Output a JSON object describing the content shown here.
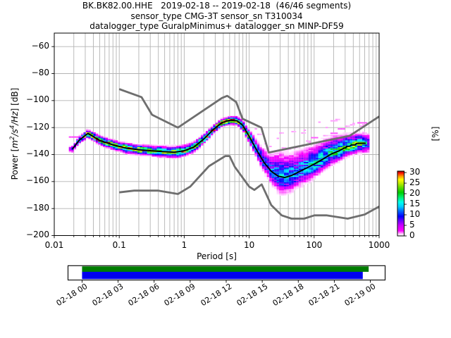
{
  "title": {
    "line1": "BK.BK82.00.HHE   2019-02-18 -- 2019-02-18  (46/46 segments)",
    "line2": "sensor_type CMG-3T sensor_sn T310034",
    "line3": "datalogger_type GuralpMinimus+ datalogger_sn MINP-DF59"
  },
  "chart_data": {
    "type": "heatmap",
    "xlabel": "Period [s]",
    "ylabel_parts": [
      {
        "t": "Power [",
        "i": false
      },
      {
        "t": "m",
        "i": true
      },
      {
        "t": "2",
        "i": true,
        "sup": true
      },
      {
        "t": "/s",
        "i": true
      },
      {
        "t": "4",
        "i": true,
        "sup": true
      },
      {
        "t": "/Hz",
        "i": true
      },
      {
        "t": "] [dB]",
        "i": false
      }
    ],
    "x_axis": {
      "scale": "log",
      "lim": [
        0.01,
        1000
      ],
      "ticks": [
        0.01,
        0.1,
        1,
        10,
        100,
        1000
      ],
      "tick_labels": [
        "0.01",
        "0.1",
        "1",
        "10",
        "100",
        "1000"
      ],
      "grid": true
    },
    "y_axis": {
      "lim": [
        -200,
        -50
      ],
      "ticks": [
        -60,
        -80,
        -100,
        -120,
        -140,
        -160,
        -180,
        -200
      ],
      "tick_labels": [
        "−60",
        "−80",
        "−100",
        "−120",
        "−140",
        "−160",
        "−180",
        "−200"
      ],
      "grid": true
    },
    "grid_color": "#b4b4b4",
    "colorbar": {
      "label": "[%]",
      "ticks": [
        0,
        5,
        10,
        15,
        20,
        25,
        30
      ],
      "vmax": 30.7,
      "stops": [
        [
          0.0,
          "#ffffff"
        ],
        [
          0.03,
          "#ffccff"
        ],
        [
          0.08,
          "#ff00ff"
        ],
        [
          0.16,
          "#cc00ff"
        ],
        [
          0.24,
          "#6600ff"
        ],
        [
          0.3,
          "#0000ff"
        ],
        [
          0.38,
          "#0066ff"
        ],
        [
          0.45,
          "#00ccff"
        ],
        [
          0.52,
          "#00ffee"
        ],
        [
          0.6,
          "#00ee66"
        ],
        [
          0.67,
          "#00cc00"
        ],
        [
          0.75,
          "#66dd00"
        ],
        [
          0.82,
          "#ccee00"
        ],
        [
          0.87,
          "#ffff00"
        ],
        [
          0.92,
          "#ff9900"
        ],
        [
          0.97,
          "#ff1100"
        ],
        [
          1.0,
          "#8b0000"
        ]
      ]
    },
    "noise_models": {
      "color": "#6e6e6e",
      "nhnm": [
        [
          0.1,
          -91.5
        ],
        [
          0.22,
          -97.4
        ],
        [
          0.32,
          -110.5
        ],
        [
          0.8,
          -120
        ],
        [
          3.8,
          -98.1
        ],
        [
          4.6,
          -96.5
        ],
        [
          6.3,
          -101
        ],
        [
          7.9,
          -113.5
        ],
        [
          15.4,
          -120
        ],
        [
          20,
          -138.5
        ],
        [
          354.8,
          -126
        ],
        [
          1000,
          -111.8
        ]
      ],
      "nlnm": [
        [
          0.1,
          -168
        ],
        [
          0.17,
          -166.7
        ],
        [
          0.4,
          -166.7
        ],
        [
          0.8,
          -169.2
        ],
        [
          1.24,
          -163.7
        ],
        [
          2.4,
          -148.6
        ],
        [
          4.3,
          -141.1
        ],
        [
          5,
          -141.1
        ],
        [
          6,
          -149
        ],
        [
          10,
          -163.8
        ],
        [
          12,
          -166.2
        ],
        [
          15.6,
          -162.1
        ],
        [
          21.9,
          -177.5
        ],
        [
          31.6,
          -185
        ],
        [
          45,
          -187.5
        ],
        [
          70,
          -187.5
        ],
        [
          101,
          -185
        ],
        [
          154,
          -185
        ],
        [
          328,
          -187.5
        ],
        [
          600,
          -184.4
        ],
        [
          1000,
          -178.5
        ]
      ]
    },
    "mode_line": {
      "color": "#000000",
      "points": [
        [
          0.019,
          -136
        ],
        [
          0.024,
          -129.5
        ],
        [
          0.033,
          -124.3
        ],
        [
          0.05,
          -129.5
        ],
        [
          0.08,
          -132.8
        ],
        [
          0.13,
          -135.3
        ],
        [
          0.22,
          -136.6
        ],
        [
          0.4,
          -137.6
        ],
        [
          0.7,
          -138.3
        ],
        [
          1.0,
          -137.2
        ],
        [
          1.4,
          -134.5
        ],
        [
          2.0,
          -128.5
        ],
        [
          2.8,
          -121.5
        ],
        [
          3.8,
          -116.3
        ],
        [
          5.0,
          -114.6
        ],
        [
          6.5,
          -115.0
        ],
        [
          8.0,
          -118.5
        ],
        [
          10,
          -126.5
        ],
        [
          13,
          -136.5
        ],
        [
          17,
          -146
        ],
        [
          22,
          -152.5
        ],
        [
          28,
          -156
        ],
        [
          35,
          -157
        ],
        [
          45,
          -155.5
        ],
        [
          60,
          -152.5
        ],
        [
          80,
          -149.5
        ],
        [
          105,
          -146.5
        ],
        [
          140,
          -143
        ],
        [
          185,
          -139.5
        ],
        [
          240,
          -137.3
        ],
        [
          290,
          -135.2
        ],
        [
          305,
          -135.0
        ],
        [
          315,
          -134.0
        ],
        [
          355,
          -133.8
        ],
        [
          370,
          -133.0
        ],
        [
          430,
          -132.8
        ],
        [
          445,
          -131.8
        ],
        [
          620,
          -131.6
        ]
      ]
    },
    "histogram": {
      "period_step_octaves": 0.125,
      "period_range": [
        0.0175,
        700
      ],
      "db_bin_width": 1,
      "profile": [
        [
          0.0175,
          1.0,
          1.0,
          6
        ],
        [
          0.023,
          1.2,
          1.2,
          18
        ],
        [
          0.033,
          1.3,
          1.3,
          26
        ],
        [
          0.06,
          1.5,
          1.5,
          28
        ],
        [
          0.12,
          1.6,
          1.6,
          26
        ],
        [
          0.3,
          1.7,
          1.7,
          24
        ],
        [
          0.7,
          1.9,
          1.9,
          22
        ],
        [
          1.5,
          1.7,
          1.7,
          24
        ],
        [
          3.0,
          1.3,
          1.3,
          30
        ],
        [
          6.0,
          1.3,
          1.3,
          30
        ],
        [
          9.0,
          1.9,
          1.9,
          22
        ],
        [
          13,
          3.2,
          2.6,
          13
        ],
        [
          20,
          5.2,
          3.6,
          11
        ],
        [
          30,
          8.0,
          5.5,
          13
        ],
        [
          50,
          7.0,
          5.0,
          13
        ],
        [
          100,
          6.0,
          4.5,
          15
        ],
        [
          200,
          5.5,
          3.5,
          17
        ],
        [
          350,
          3.5,
          3.2,
          20
        ],
        [
          550,
          3.2,
          3.0,
          20
        ],
        [
          700,
          3.0,
          3.0,
          10
        ]
      ],
      "streaks": [
        [
          0.0175,
          0.028,
          -127,
          2
        ],
        [
          90,
          120,
          -127.5,
          1.8
        ],
        [
          180,
          240,
          -124.2,
          1.8
        ],
        [
          230,
          310,
          -121,
          1.8
        ],
        [
          430,
          640,
          -116.5,
          1.8
        ]
      ]
    },
    "timeline": {
      "xlim_hours": [
        -1.17,
        25.23
      ],
      "ticks": [
        {
          "label": "02-18 00",
          "hour": 0
        },
        {
          "label": "02-18 03",
          "hour": 3
        },
        {
          "label": "02-18 06",
          "hour": 6
        },
        {
          "label": "02-18 09",
          "hour": 9
        },
        {
          "label": "02-18 12",
          "hour": 12
        },
        {
          "label": "02-18 15",
          "hour": 15
        },
        {
          "label": "02-18 18",
          "hour": 18
        },
        {
          "label": "02-18 21",
          "hour": 21
        },
        {
          "label": "02-19 00",
          "hour": 24
        }
      ],
      "green_span_hours": [
        0,
        23.86
      ],
      "blue_span_hours": [
        0,
        23.37
      ],
      "green_color": "#007c00",
      "blue_color": "#0000ee"
    }
  }
}
